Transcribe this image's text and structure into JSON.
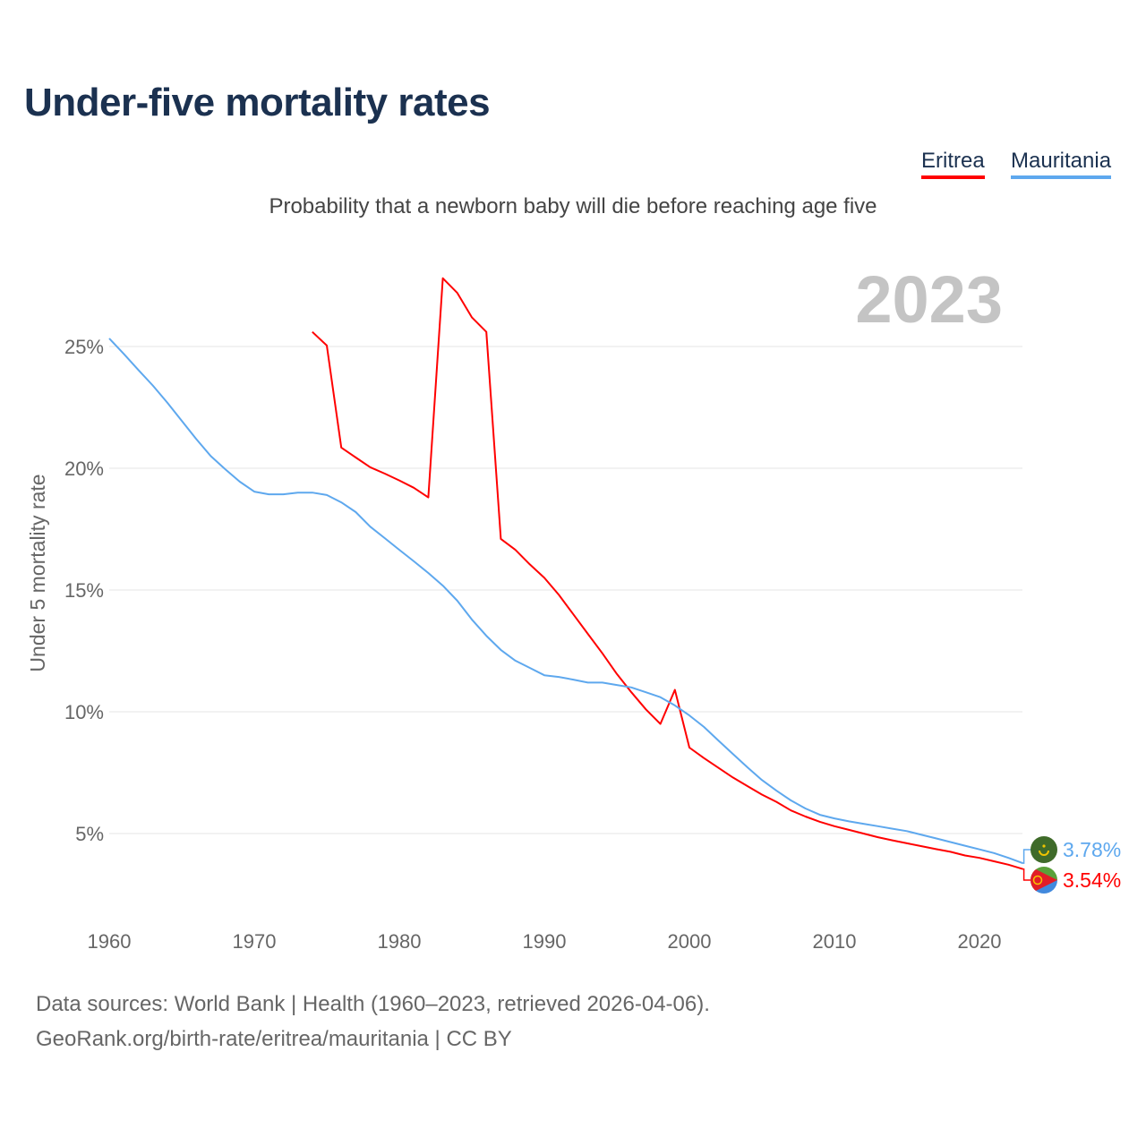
{
  "title": "Under-five mortality rates",
  "subtitle": "Probability that a newborn baby will die before reaching age five",
  "footer": {
    "line1": "Data sources: World Bank | Health (1960–2023, retrieved 2026-04-06).",
    "line2": "GeoRank.org/birth-rate/eritrea/mauritania | CC BY"
  },
  "chart_data": {
    "type": "line",
    "title": "Under-five mortality rates",
    "ylabel": "Under 5 mortality rate",
    "xlabel": "",
    "year_label": "2023",
    "xlim": [
      1960,
      2023
    ],
    "ylim": [
      0,
      28
    ],
    "grid": true,
    "legend_position": "top-right",
    "x_ticks": [
      1960,
      1970,
      1980,
      1990,
      2000,
      2010,
      2020
    ],
    "y_ticks": [
      5,
      10,
      15,
      20,
      25
    ],
    "y_tick_labels": [
      "5%",
      "10%",
      "15%",
      "20%",
      "25%"
    ],
    "series": [
      {
        "name": "Eritrea",
        "color": "#ff0000",
        "end_label": "3.54%",
        "flag": "eritrea-flag",
        "start_year": 1974,
        "values": [
          25.6,
          25.04,
          20.85,
          20.44,
          20.04,
          19.78,
          19.5,
          19.2,
          18.8,
          27.8,
          27.2,
          26.2,
          25.6,
          17.1,
          16.65,
          16.05,
          15.5,
          14.8,
          14.0,
          13.2,
          12.4,
          11.55,
          10.8,
          10.1,
          9.5,
          10.9,
          8.53,
          8.1,
          7.7,
          7.3,
          6.95,
          6.6,
          6.3,
          5.95,
          5.7,
          5.48,
          5.3,
          5.15,
          5.0,
          4.85,
          4.72,
          4.6,
          4.48,
          4.36,
          4.25,
          4.1,
          4.0,
          3.86,
          3.72,
          3.54
        ]
      },
      {
        "name": "Mauritania",
        "color": "#5ea8ee",
        "end_label": "3.78%",
        "flag": "mauritania-flag",
        "start_year": 1960,
        "values": [
          25.33,
          24.7,
          24.04,
          23.4,
          22.7,
          21.95,
          21.2,
          20.5,
          19.96,
          19.45,
          19.04,
          18.93,
          18.93,
          19.0,
          19.0,
          18.9,
          18.6,
          18.2,
          17.6,
          17.13,
          16.65,
          16.18,
          15.7,
          15.18,
          14.56,
          13.79,
          13.12,
          12.54,
          12.1,
          11.8,
          11.5,
          11.43,
          11.32,
          11.2,
          11.2,
          11.1,
          11.0,
          10.8,
          10.6,
          10.26,
          9.85,
          9.38,
          8.82,
          8.27,
          7.72,
          7.2,
          6.76,
          6.36,
          6.03,
          5.77,
          5.62,
          5.5,
          5.4,
          5.3,
          5.2,
          5.1,
          4.95,
          4.8,
          4.65,
          4.5,
          4.35,
          4.2,
          4.0,
          3.78
        ]
      }
    ]
  }
}
